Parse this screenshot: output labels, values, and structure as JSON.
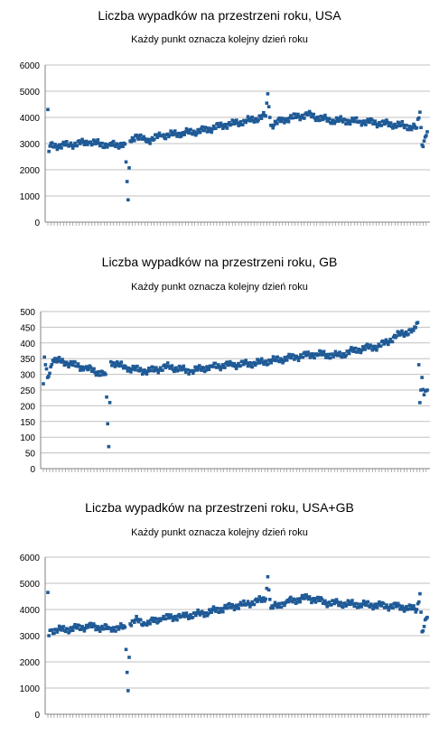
{
  "charts": [
    {
      "title": "Liczba wypadków na przestrzeni roku, USA",
      "subtitle": "Każdy punkt oznacza kolejny dzień roku"
    },
    {
      "title": "Liczba wypadków na przestrzeni roku, GB",
      "subtitle": "Każdy punkt oznacza kolejny dzień roku"
    },
    {
      "title": "Liczba wypadków na przestrzeni roku, USA+GB",
      "subtitle": "Każdy punkt oznacza kolejny dzień roku"
    }
  ],
  "colors": {
    "marker": "#1f5a96",
    "grid": "#c0c0c0",
    "axis": "#808080"
  },
  "chart_data": [
    {
      "type": "scatter",
      "title": "Liczba wypadków na przestrzeni roku, USA",
      "subtitle": "Każdy punkt oznacza kolejny dzień roku",
      "xlabel": "",
      "ylabel": "",
      "ylim": [
        0,
        6000
      ],
      "yticks": [
        0,
        1000,
        2000,
        3000,
        4000,
        5000,
        6000
      ],
      "grid": true,
      "legend": "none",
      "x_range": [
        1,
        365
      ],
      "control_points": [
        [
          1,
          4300
        ],
        [
          2,
          2700
        ],
        [
          3,
          2900
        ],
        [
          20,
          2950
        ],
        [
          40,
          3050
        ],
        [
          60,
          2950
        ],
        [
          75,
          2980
        ],
        [
          78,
          850
        ],
        [
          80,
          3100
        ],
        [
          85,
          3300
        ],
        [
          95,
          3100
        ],
        [
          110,
          3300
        ],
        [
          130,
          3400
        ],
        [
          150,
          3500
        ],
        [
          170,
          3700
        ],
        [
          190,
          3850
        ],
        [
          210,
          4050
        ],
        [
          212,
          4900
        ],
        [
          215,
          3700
        ],
        [
          230,
          3950
        ],
        [
          250,
          4100
        ],
        [
          270,
          3900
        ],
        [
          300,
          3850
        ],
        [
          340,
          3700
        ],
        [
          355,
          3600
        ],
        [
          358,
          4200
        ],
        [
          360,
          2950
        ],
        [
          362,
          3100
        ],
        [
          365,
          3450
        ]
      ]
    },
    {
      "type": "scatter",
      "title": "Liczba wypadków na przestrzeni roku, GB",
      "subtitle": "Każdy punkt oznacza kolejny dzień roku",
      "xlabel": "",
      "ylabel": "",
      "ylim": [
        0,
        500
      ],
      "yticks": [
        0,
        50,
        100,
        150,
        200,
        250,
        300,
        350,
        400,
        450,
        500
      ],
      "grid": true,
      "legend": "none",
      "x_range": [
        1,
        365
      ],
      "control_points": [
        [
          1,
          270
        ],
        [
          2,
          355
        ],
        [
          5,
          290
        ],
        [
          10,
          345
        ],
        [
          20,
          340
        ],
        [
          40,
          320
        ],
        [
          60,
          300
        ],
        [
          63,
          70
        ],
        [
          65,
          340
        ],
        [
          80,
          320
        ],
        [
          100,
          310
        ],
        [
          120,
          325
        ],
        [
          140,
          310
        ],
        [
          160,
          325
        ],
        [
          180,
          330
        ],
        [
          200,
          335
        ],
        [
          220,
          345
        ],
        [
          240,
          355
        ],
        [
          260,
          365
        ],
        [
          280,
          360
        ],
        [
          300,
          380
        ],
        [
          320,
          390
        ],
        [
          340,
          430
        ],
        [
          352,
          440
        ],
        [
          356,
          465
        ],
        [
          358,
          210
        ],
        [
          360,
          290
        ],
        [
          362,
          235
        ],
        [
          365,
          250
        ]
      ]
    },
    {
      "type": "scatter",
      "title": "Liczba wypadków na przestrzeni roku, USA+GB",
      "subtitle": "Każdy punkt oznacza kolejny dzień roku",
      "xlabel": "",
      "ylabel": "",
      "ylim": [
        0,
        6000
      ],
      "yticks": [
        0,
        1000,
        2000,
        3000,
        4000,
        5000,
        6000
      ],
      "grid": true,
      "legend": "none",
      "x_range": [
        1,
        365
      ],
      "control_points": [
        [
          1,
          4650
        ],
        [
          2,
          3000
        ],
        [
          3,
          3200
        ],
        [
          20,
          3250
        ],
        [
          40,
          3350
        ],
        [
          60,
          3280
        ],
        [
          75,
          3320
        ],
        [
          78,
          900
        ],
        [
          80,
          3450
        ],
        [
          85,
          3600
        ],
        [
          95,
          3450
        ],
        [
          110,
          3650
        ],
        [
          130,
          3750
        ],
        [
          150,
          3850
        ],
        [
          170,
          4050
        ],
        [
          190,
          4200
        ],
        [
          210,
          4400
        ],
        [
          212,
          5250
        ],
        [
          215,
          4050
        ],
        [
          230,
          4300
        ],
        [
          250,
          4450
        ],
        [
          270,
          4250
        ],
        [
          300,
          4200
        ],
        [
          340,
          4100
        ],
        [
          355,
          4000
        ],
        [
          358,
          4600
        ],
        [
          360,
          3150
        ],
        [
          362,
          3350
        ],
        [
          365,
          3700
        ]
      ]
    }
  ]
}
